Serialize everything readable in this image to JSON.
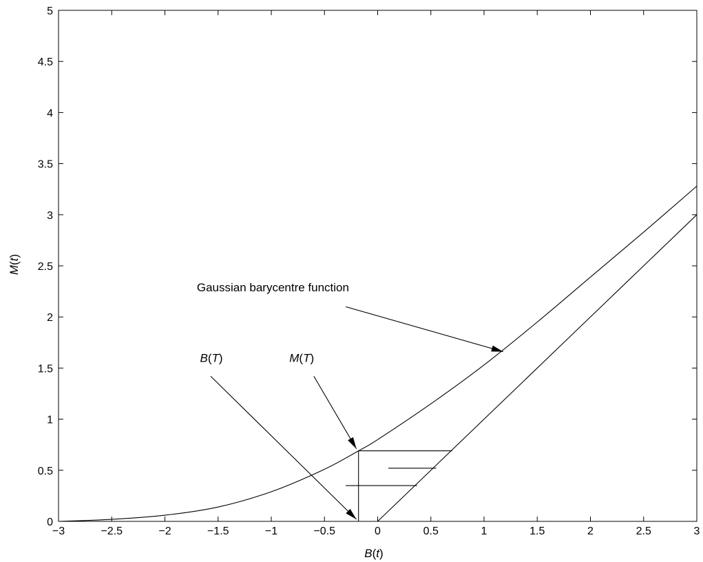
{
  "chart_data": {
    "type": "line",
    "title": "",
    "xlabel": {
      "var": "B",
      "arg": "t"
    },
    "ylabel": {
      "var": "M",
      "arg": "t"
    },
    "xlim": [
      -3,
      3
    ],
    "ylim": [
      0,
      5
    ],
    "x_ticks": [
      -3,
      -2.5,
      -2,
      -1.5,
      -1,
      -0.5,
      0,
      0.5,
      1,
      1.5,
      2,
      2.5,
      3
    ],
    "x_tick_labels": [
      "−3",
      "−2.5",
      "−2",
      "−1.5",
      "−1",
      "−0.5",
      "0",
      "0.5",
      "1",
      "1.5",
      "2",
      "2.5",
      "3"
    ],
    "y_ticks": [
      0,
      0.5,
      1,
      1.5,
      2,
      2.5,
      3,
      3.5,
      4,
      4.5,
      5
    ],
    "y_tick_labels": [
      "0",
      "0.5",
      "1",
      "1.5",
      "2",
      "2.5",
      "3",
      "3.5",
      "4",
      "4.5",
      "5"
    ],
    "grid": false,
    "series": [
      {
        "x": [
          -3,
          -2.5,
          -2,
          -1.5,
          -1,
          -0.5,
          -0.18,
          0,
          0.5,
          1,
          1.5,
          2,
          2.5,
          3
        ],
        "y": [
          0.0,
          0.02,
          0.06,
          0.14,
          0.29,
          0.51,
          0.69,
          0.8,
          1.15,
          1.53,
          1.95,
          2.39,
          2.83,
          3.28
        ]
      },
      {
        "x": [
          0,
          3
        ],
        "y": [
          0,
          3
        ]
      }
    ],
    "segments": [
      {
        "x1": -0.18,
        "y1": 0,
        "x2": -0.18,
        "y2": 0.69
      },
      {
        "x1": -0.18,
        "y1": 0.69,
        "x2": 0.7,
        "y2": 0.69
      },
      {
        "x1": 0.1,
        "y1": 0.52,
        "x2": 0.55,
        "y2": 0.52
      },
      {
        "x1": -0.3,
        "y1": 0.35,
        "x2": 0.37,
        "y2": 0.35
      }
    ],
    "annotations": [
      {
        "id": "gbf",
        "text": "Gaussian barycentre function",
        "x": -1.7,
        "y": 2.25,
        "arrow_from": [
          -0.3,
          2.1
        ],
        "arrow_to": [
          1.18,
          1.66
        ]
      },
      {
        "id": "mt",
        "var": "M",
        "arg": "T",
        "x": -0.83,
        "y": 1.56,
        "arrow_from": [
          -0.6,
          1.42
        ],
        "arrow_to": [
          -0.2,
          0.71
        ]
      },
      {
        "id": "bt",
        "var": "B",
        "arg": "T",
        "x": -1.67,
        "y": 1.56,
        "arrow_from": [
          -1.57,
          1.42
        ],
        "arrow_to": [
          -0.2,
          0.02
        ]
      }
    ]
  }
}
